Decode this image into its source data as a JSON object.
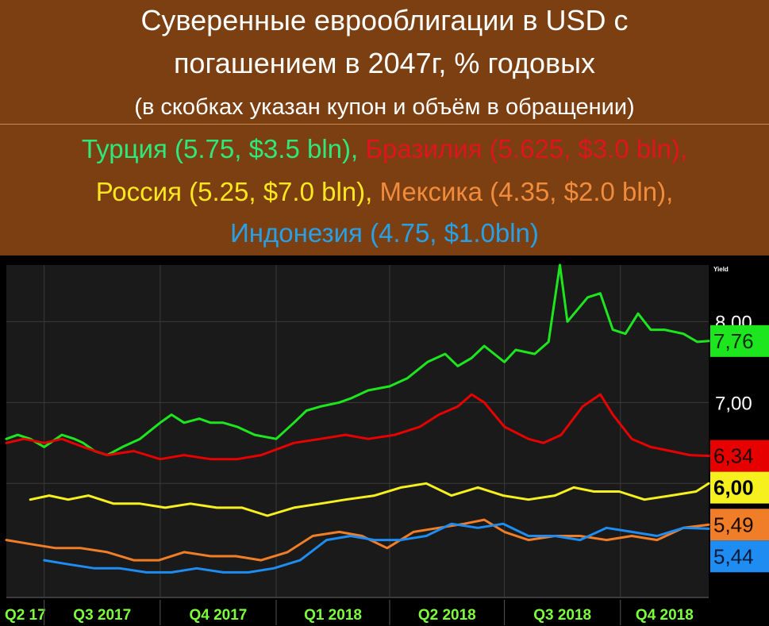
{
  "header": {
    "title_line1": "Суверенные еврооблигации в USD с",
    "title_line2": "погашением в 2047г, % годовых",
    "subtitle": "(в скобках указан купон и объём в обращении)"
  },
  "legend": {
    "turkey": "Турция (5.75, $3.5 bln),",
    "brazil": "Бразилия (5.625, $3.0 bln),",
    "russia": "Россия (5.25, $7.0 bln),",
    "mexico": "Мексика (4.35, $2.0 bln),",
    "indonesia": "Индонезия (4.75, $1.0bln)"
  },
  "colors": {
    "background": "#7b3f12",
    "plot_background": "#1a1a1a",
    "turkey": "#1ee61e",
    "brazil": "#e60000",
    "russia": "#f5f01e",
    "mexico": "#f07d28",
    "indonesia": "#1e8cf0",
    "legend_turkey": "#2fe87a",
    "legend_brazil": "#e0141e",
    "legend_russia": "#ffe61e",
    "legend_mexico": "#f08c3c",
    "legend_indonesia": "#28a0e6"
  },
  "chart_data": {
    "type": "line",
    "y_axis_title": "Yield",
    "y_ticks": [
      "8,00",
      "7,00",
      "6,00"
    ],
    "ylim": [
      4.6,
      8.7
    ],
    "x_ticks": [
      "Q2 17",
      "Q3 2017",
      "Q4 2017",
      "Q1 2018",
      "Q2 2018",
      "Q3 2018",
      "Q4 2018"
    ],
    "x_range": [
      "2017-06-01",
      "2018-12-10"
    ],
    "grid": true,
    "last_values": [
      {
        "label": "7,76",
        "series": "Турция",
        "value": 7.76
      },
      {
        "label": "6,34",
        "series": "Бразилия",
        "value": 6.34
      },
      {
        "label": "6,00",
        "series": "Россия",
        "value": 6.0
      },
      {
        "label": "5,49",
        "series": "Мексика",
        "value": 5.49
      },
      {
        "label": "5,44",
        "series": "Индонезия",
        "value": 5.44
      }
    ],
    "series": [
      {
        "name": "Турция (5.75, $3.5 bln)",
        "points": [
          [
            "2017-06-01",
            6.55
          ],
          [
            "2017-06-10",
            6.6
          ],
          [
            "2017-06-20",
            6.55
          ],
          [
            "2017-07-01",
            6.45
          ],
          [
            "2017-07-15",
            6.6
          ],
          [
            "2017-07-25",
            6.55
          ],
          [
            "2017-08-01",
            6.5
          ],
          [
            "2017-08-10",
            6.4
          ],
          [
            "2017-08-20",
            6.35
          ],
          [
            "2017-09-01",
            6.45
          ],
          [
            "2017-09-15",
            6.55
          ],
          [
            "2017-10-01",
            6.75
          ],
          [
            "2017-10-10",
            6.85
          ],
          [
            "2017-10-20",
            6.75
          ],
          [
            "2017-11-01",
            6.8
          ],
          [
            "2017-11-10",
            6.75
          ],
          [
            "2017-11-20",
            6.75
          ],
          [
            "2017-12-01",
            6.7
          ],
          [
            "2017-12-15",
            6.6
          ],
          [
            "2018-01-01",
            6.55
          ],
          [
            "2018-01-15",
            6.75
          ],
          [
            "2018-01-25",
            6.9
          ],
          [
            "2018-02-05",
            6.95
          ],
          [
            "2018-02-20",
            7.0
          ],
          [
            "2018-03-01",
            7.05
          ],
          [
            "2018-03-15",
            7.15
          ],
          [
            "2018-04-01",
            7.2
          ],
          [
            "2018-04-15",
            7.3
          ],
          [
            "2018-05-01",
            7.5
          ],
          [
            "2018-05-15",
            7.6
          ],
          [
            "2018-05-25",
            7.45
          ],
          [
            "2018-06-05",
            7.55
          ],
          [
            "2018-06-15",
            7.7
          ],
          [
            "2018-07-01",
            7.5
          ],
          [
            "2018-07-10",
            7.65
          ],
          [
            "2018-07-25",
            7.6
          ],
          [
            "2018-08-05",
            7.75
          ],
          [
            "2018-08-14",
            8.7
          ],
          [
            "2018-08-20",
            8.0
          ],
          [
            "2018-08-28",
            8.15
          ],
          [
            "2018-09-05",
            8.3
          ],
          [
            "2018-09-15",
            8.35
          ],
          [
            "2018-09-25",
            7.9
          ],
          [
            "2018-10-05",
            7.85
          ],
          [
            "2018-10-15",
            8.1
          ],
          [
            "2018-10-25",
            7.9
          ],
          [
            "2018-11-05",
            7.9
          ],
          [
            "2018-11-20",
            7.85
          ],
          [
            "2018-12-01",
            7.75
          ],
          [
            "2018-12-10",
            7.76
          ]
        ]
      },
      {
        "name": "Бразилия (5.625, $3.0 bln)",
        "points": [
          [
            "2017-06-01",
            6.5
          ],
          [
            "2017-06-15",
            6.55
          ],
          [
            "2017-07-01",
            6.5
          ],
          [
            "2017-07-15",
            6.55
          ],
          [
            "2017-08-01",
            6.45
          ],
          [
            "2017-08-20",
            6.35
          ],
          [
            "2017-09-10",
            6.4
          ],
          [
            "2017-10-01",
            6.3
          ],
          [
            "2017-10-20",
            6.35
          ],
          [
            "2017-11-10",
            6.3
          ],
          [
            "2017-12-01",
            6.3
          ],
          [
            "2017-12-20",
            6.35
          ],
          [
            "2018-01-15",
            6.5
          ],
          [
            "2018-02-05",
            6.55
          ],
          [
            "2018-02-25",
            6.6
          ],
          [
            "2018-03-15",
            6.55
          ],
          [
            "2018-04-05",
            6.6
          ],
          [
            "2018-04-25",
            6.7
          ],
          [
            "2018-05-10",
            6.85
          ],
          [
            "2018-05-25",
            6.95
          ],
          [
            "2018-06-05",
            7.1
          ],
          [
            "2018-06-15",
            7.0
          ],
          [
            "2018-07-01",
            6.7
          ],
          [
            "2018-07-20",
            6.55
          ],
          [
            "2018-08-01",
            6.5
          ],
          [
            "2018-08-15",
            6.6
          ],
          [
            "2018-09-01",
            6.95
          ],
          [
            "2018-09-15",
            7.1
          ],
          [
            "2018-09-25",
            6.85
          ],
          [
            "2018-10-10",
            6.55
          ],
          [
            "2018-10-25",
            6.45
          ],
          [
            "2018-11-10",
            6.4
          ],
          [
            "2018-11-25",
            6.35
          ],
          [
            "2018-12-10",
            6.34
          ]
        ]
      },
      {
        "name": "Россия (5.25, $7.0 bln)",
        "points": [
          [
            "2017-06-20",
            5.8
          ],
          [
            "2017-07-05",
            5.85
          ],
          [
            "2017-07-20",
            5.8
          ],
          [
            "2017-08-05",
            5.85
          ],
          [
            "2017-08-25",
            5.75
          ],
          [
            "2017-09-15",
            5.75
          ],
          [
            "2017-10-05",
            5.7
          ],
          [
            "2017-10-25",
            5.75
          ],
          [
            "2017-11-15",
            5.7
          ],
          [
            "2017-12-05",
            5.7
          ],
          [
            "2017-12-25",
            5.6
          ],
          [
            "2018-01-15",
            5.7
          ],
          [
            "2018-02-05",
            5.75
          ],
          [
            "2018-02-25",
            5.8
          ],
          [
            "2018-03-20",
            5.85
          ],
          [
            "2018-04-10",
            5.95
          ],
          [
            "2018-04-30",
            6.0
          ],
          [
            "2018-05-20",
            5.85
          ],
          [
            "2018-06-10",
            5.95
          ],
          [
            "2018-06-30",
            5.85
          ],
          [
            "2018-07-20",
            5.8
          ],
          [
            "2018-08-10",
            5.85
          ],
          [
            "2018-08-25",
            5.95
          ],
          [
            "2018-09-10",
            5.9
          ],
          [
            "2018-09-30",
            5.9
          ],
          [
            "2018-10-20",
            5.8
          ],
          [
            "2018-11-10",
            5.85
          ],
          [
            "2018-11-30",
            5.9
          ],
          [
            "2018-12-10",
            6.0
          ]
        ]
      },
      {
        "name": "Мексика (4.35, $2.0 bln)",
        "points": [
          [
            "2017-06-01",
            5.3
          ],
          [
            "2017-06-20",
            5.25
          ],
          [
            "2017-07-10",
            5.2
          ],
          [
            "2017-07-30",
            5.2
          ],
          [
            "2017-08-20",
            5.15
          ],
          [
            "2017-09-10",
            5.05
          ],
          [
            "2017-09-30",
            5.05
          ],
          [
            "2017-10-20",
            5.15
          ],
          [
            "2017-11-10",
            5.1
          ],
          [
            "2017-11-30",
            5.1
          ],
          [
            "2017-12-20",
            5.05
          ],
          [
            "2018-01-10",
            5.15
          ],
          [
            "2018-01-30",
            5.35
          ],
          [
            "2018-02-20",
            5.4
          ],
          [
            "2018-03-10",
            5.35
          ],
          [
            "2018-03-30",
            5.2
          ],
          [
            "2018-04-20",
            5.4
          ],
          [
            "2018-05-10",
            5.45
          ],
          [
            "2018-05-30",
            5.5
          ],
          [
            "2018-06-15",
            5.55
          ],
          [
            "2018-07-01",
            5.4
          ],
          [
            "2018-07-20",
            5.3
          ],
          [
            "2018-08-10",
            5.35
          ],
          [
            "2018-08-30",
            5.35
          ],
          [
            "2018-09-20",
            5.3
          ],
          [
            "2018-10-10",
            5.35
          ],
          [
            "2018-10-30",
            5.3
          ],
          [
            "2018-11-20",
            5.45
          ],
          [
            "2018-12-10",
            5.49
          ]
        ]
      },
      {
        "name": "Индонезия (4.75, $1.0bln)",
        "points": [
          [
            "2017-07-01",
            5.05
          ],
          [
            "2017-07-20",
            5.0
          ],
          [
            "2017-08-10",
            4.95
          ],
          [
            "2017-08-30",
            4.95
          ],
          [
            "2017-09-20",
            4.9
          ],
          [
            "2017-10-10",
            4.9
          ],
          [
            "2017-10-30",
            4.95
          ],
          [
            "2017-11-20",
            4.9
          ],
          [
            "2017-12-10",
            4.9
          ],
          [
            "2017-12-30",
            4.95
          ],
          [
            "2018-01-20",
            5.05
          ],
          [
            "2018-02-10",
            5.3
          ],
          [
            "2018-03-01",
            5.35
          ],
          [
            "2018-03-20",
            5.3
          ],
          [
            "2018-04-10",
            5.3
          ],
          [
            "2018-04-30",
            5.35
          ],
          [
            "2018-05-20",
            5.5
          ],
          [
            "2018-06-10",
            5.45
          ],
          [
            "2018-06-30",
            5.5
          ],
          [
            "2018-07-20",
            5.35
          ],
          [
            "2018-08-10",
            5.35
          ],
          [
            "2018-08-30",
            5.3
          ],
          [
            "2018-09-20",
            5.45
          ],
          [
            "2018-10-10",
            5.4
          ],
          [
            "2018-10-30",
            5.35
          ],
          [
            "2018-11-20",
            5.45
          ],
          [
            "2018-12-10",
            5.44
          ]
        ]
      }
    ]
  }
}
